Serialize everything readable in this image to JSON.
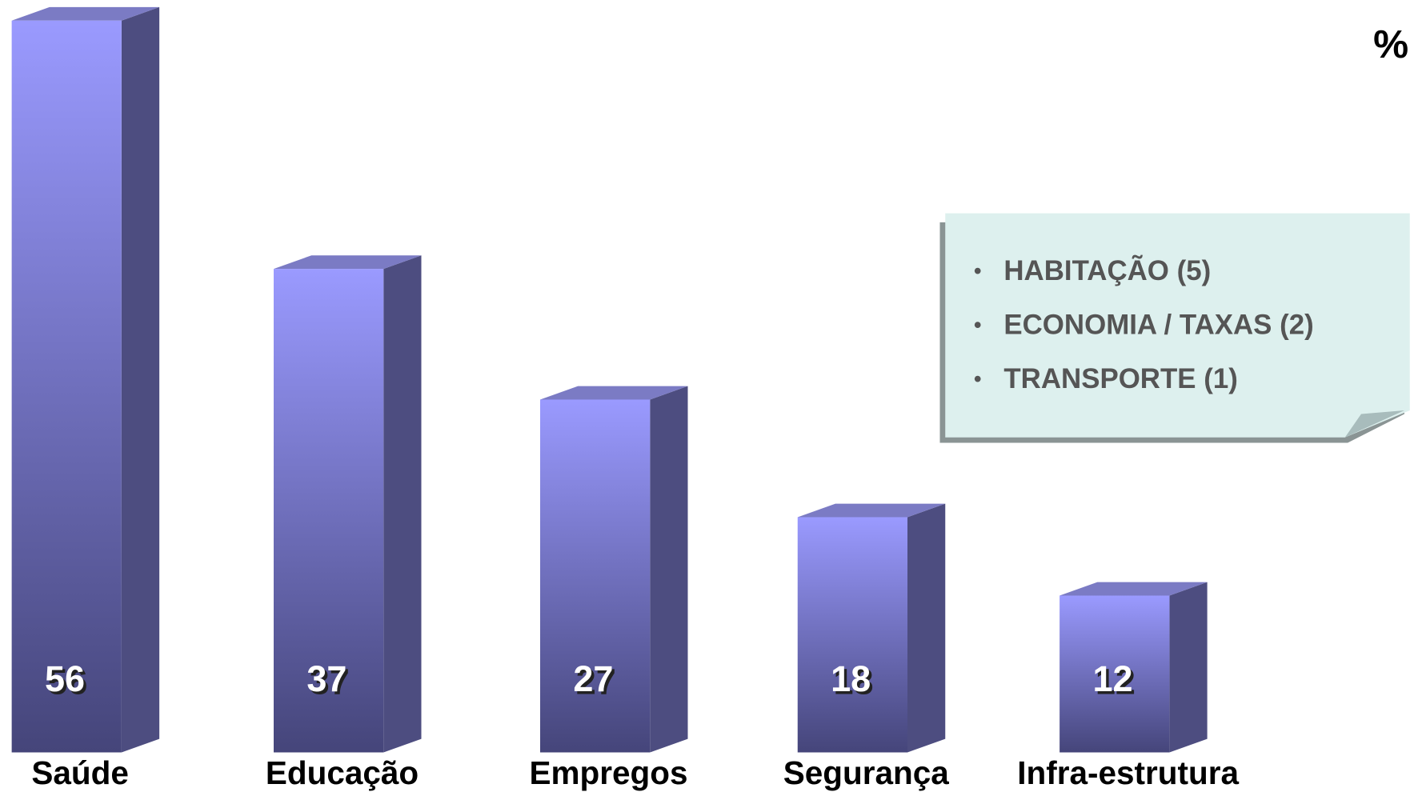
{
  "chart_data": {
    "type": "bar3d",
    "unit_label": "%",
    "categories": [
      "Saúde",
      "Educação",
      "Empregos",
      "Segurança",
      "Infra-estrutura"
    ],
    "values": [
      56,
      37,
      27,
      18,
      12
    ],
    "color": "#9a9aff",
    "notes": [
      "HABITAÇÃO (5)",
      "ECONOMIA / TAXAS (2)",
      "TRANSPORTE (1)"
    ]
  }
}
